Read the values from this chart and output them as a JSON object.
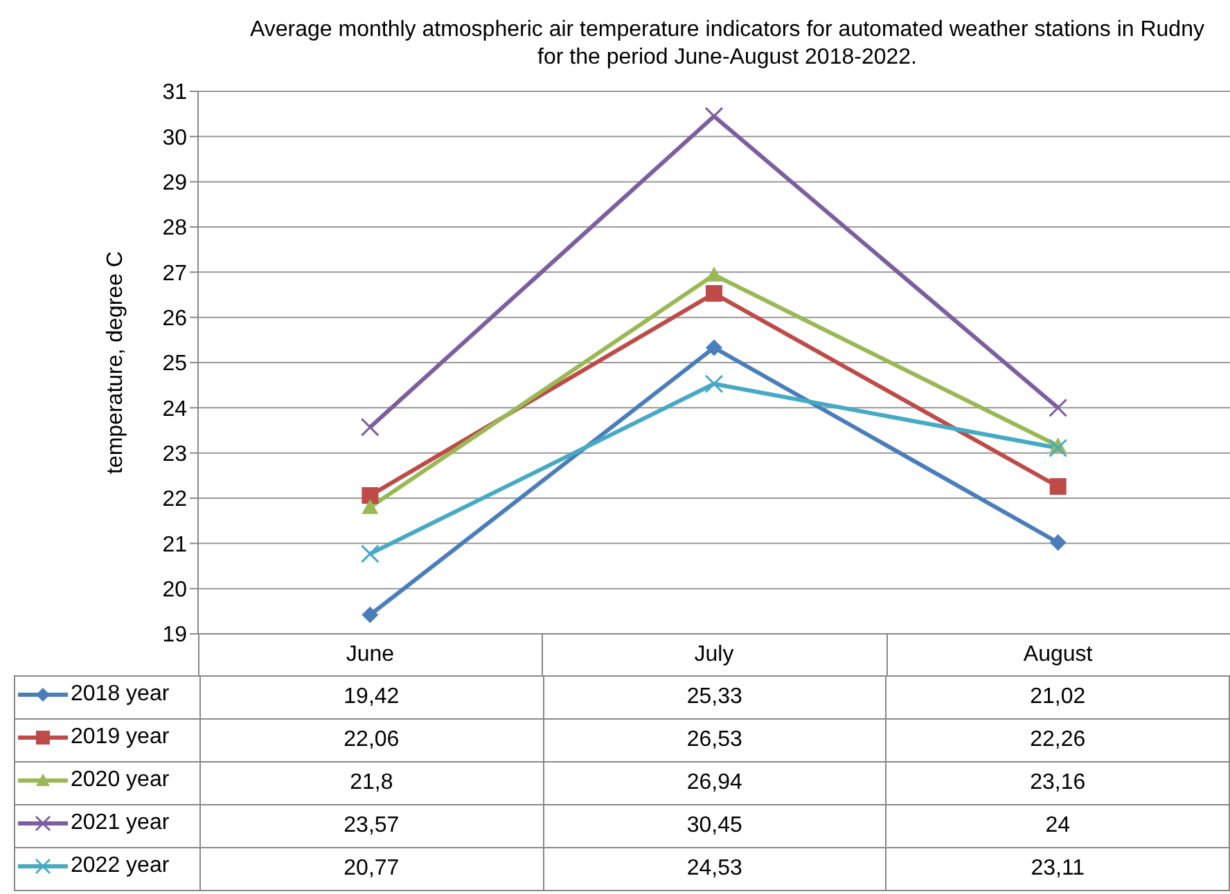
{
  "chart_data": {
    "type": "line",
    "title": "Average monthly atmospheric air temperature indicators for automated weather stations in Rudny for the period June-August 2018-2022.",
    "ylabel": "temperature, degree C",
    "categories": [
      "June",
      "July",
      "August"
    ],
    "series": [
      {
        "name": "2018 year",
        "color": "#4a7ebb",
        "marker": "diamond",
        "values": [
          19.42,
          25.33,
          21.02
        ],
        "value_labels": [
          "19,42",
          "25,33",
          "21,02"
        ]
      },
      {
        "name": "2019 year",
        "color": "#be4b48",
        "marker": "square",
        "values": [
          22.06,
          26.53,
          22.26
        ],
        "value_labels": [
          "22,06",
          "26,53",
          "22,26"
        ]
      },
      {
        "name": "2020 year",
        "color": "#98b954",
        "marker": "triangle",
        "values": [
          21.8,
          26.94,
          23.16
        ],
        "value_labels": [
          "21,8",
          "26,94",
          "23,16"
        ]
      },
      {
        "name": "2021 year",
        "color": "#7d5fa0",
        "marker": "cross",
        "values": [
          23.57,
          30.45,
          24
        ],
        "value_labels": [
          "23,57",
          "30,45",
          "24"
        ]
      },
      {
        "name": "2022 year",
        "color": "#46aac5",
        "marker": "cross",
        "values": [
          20.77,
          24.53,
          23.11
        ],
        "value_labels": [
          "20,77",
          "24,53",
          "23,11"
        ]
      }
    ],
    "ylim": [
      19,
      31
    ],
    "yticks": [
      19,
      20,
      21,
      22,
      23,
      24,
      25,
      26,
      27,
      28,
      29,
      30,
      31
    ],
    "grid": "y",
    "legend": "bottom",
    "line_style": "solid"
  }
}
